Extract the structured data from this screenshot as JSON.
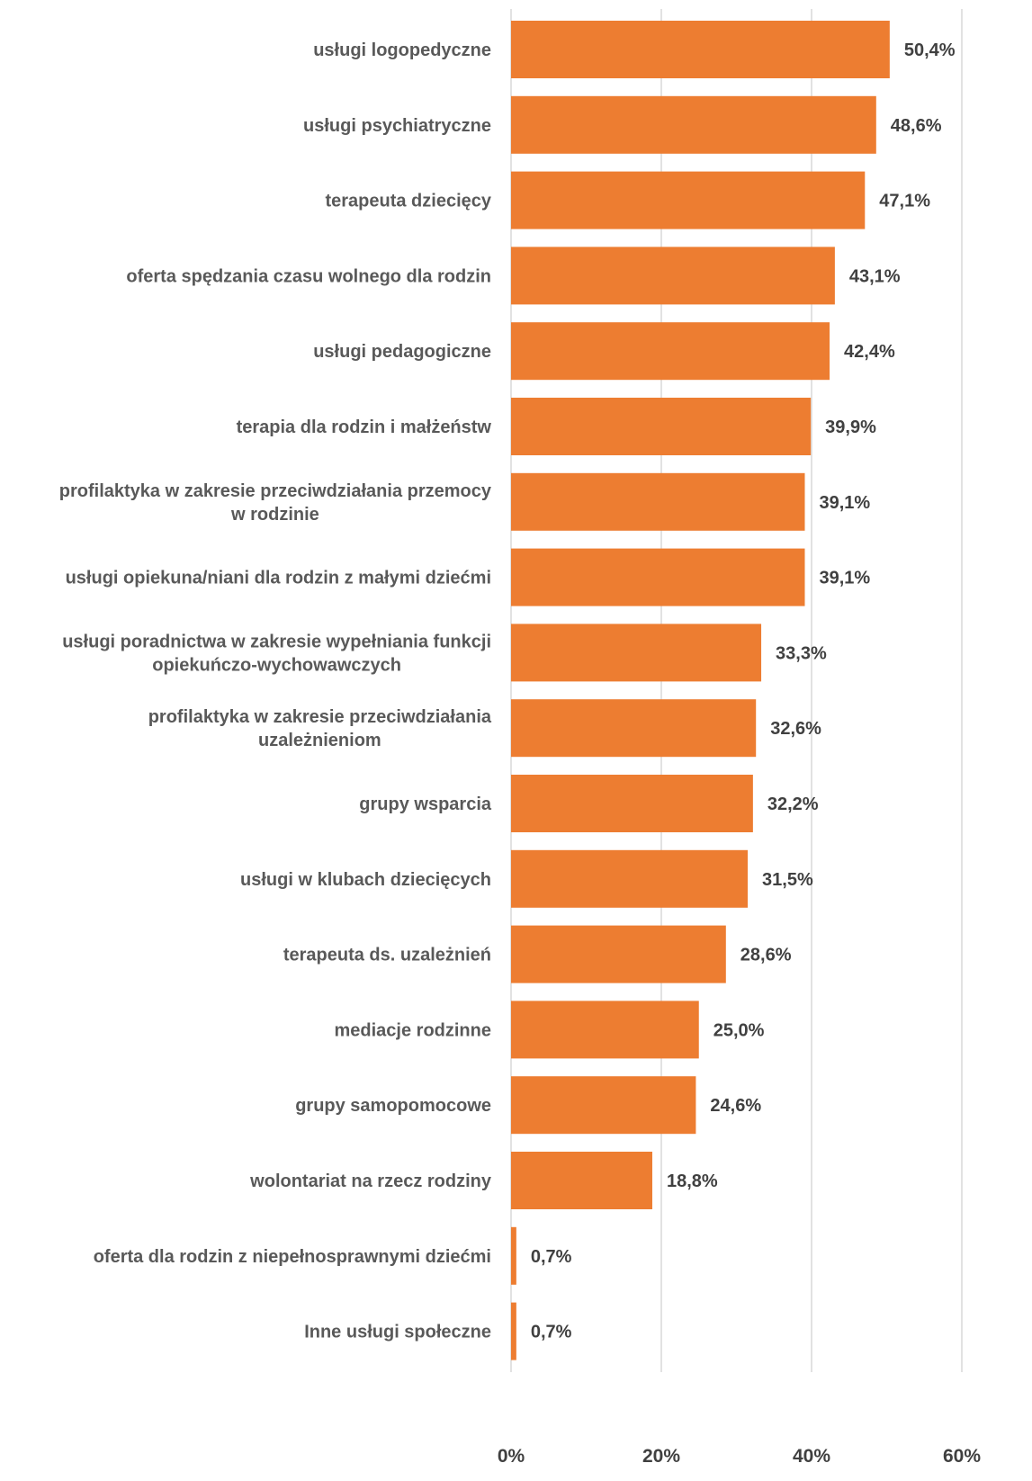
{
  "chart_data": {
    "type": "bar",
    "orientation": "horizontal",
    "title": "",
    "xlabel": "",
    "ylabel": "",
    "xlim": [
      0,
      60
    ],
    "x_ticks": [
      0,
      20,
      40,
      60
    ],
    "tick_labels": [
      "0%",
      "20%",
      "40%",
      "60%"
    ],
    "grid": "vertical",
    "legend": "none",
    "bar_color": "#ED7D31",
    "categories": [
      [
        "usługi logopedyczne"
      ],
      [
        "usługi psychiatryczne"
      ],
      [
        "terapeuta dziecięcy"
      ],
      [
        "oferta spędzania czasu wolnego dla rodzin"
      ],
      [
        "usługi pedagogiczne"
      ],
      [
        "terapia dla rodzin i małżeństw"
      ],
      [
        "profilaktyka w zakresie przeciwdziałania przemocy",
        "w rodzinie"
      ],
      [
        "usługi opiekuna/niani dla rodzin z małymi dziećmi"
      ],
      [
        "usługi poradnictwa w zakresie wypełniania funkcji",
        "opiekuńczo-wychowawczych"
      ],
      [
        "profilaktyka w zakresie przeciwdziałania",
        "uzależnieniom"
      ],
      [
        "grupy wsparcia"
      ],
      [
        "usługi w klubach dziecięcych"
      ],
      [
        "terapeuta ds. uzależnień"
      ],
      [
        "mediacje rodzinne"
      ],
      [
        "grupy samopomocowe"
      ],
      [
        "wolontariat na rzecz rodziny"
      ],
      [
        "oferta dla rodzin z niepełnosprawnymi dziećmi"
      ],
      [
        "Inne usługi społeczne"
      ]
    ],
    "values": [
      50.4,
      48.6,
      47.1,
      43.1,
      42.4,
      39.9,
      39.1,
      39.1,
      33.3,
      32.6,
      32.2,
      31.5,
      28.6,
      25.0,
      24.6,
      18.8,
      0.7,
      0.7
    ],
    "value_labels": [
      "50,4%",
      "48,6%",
      "47,1%",
      "43,1%",
      "42,4%",
      "39,9%",
      "39,1%",
      "39,1%",
      "33,3%",
      "32,6%",
      "32,2%",
      "31,5%",
      "28,6%",
      "25,0%",
      "24,6%",
      "18,8%",
      "0,7%",
      "0,7%"
    ]
  }
}
